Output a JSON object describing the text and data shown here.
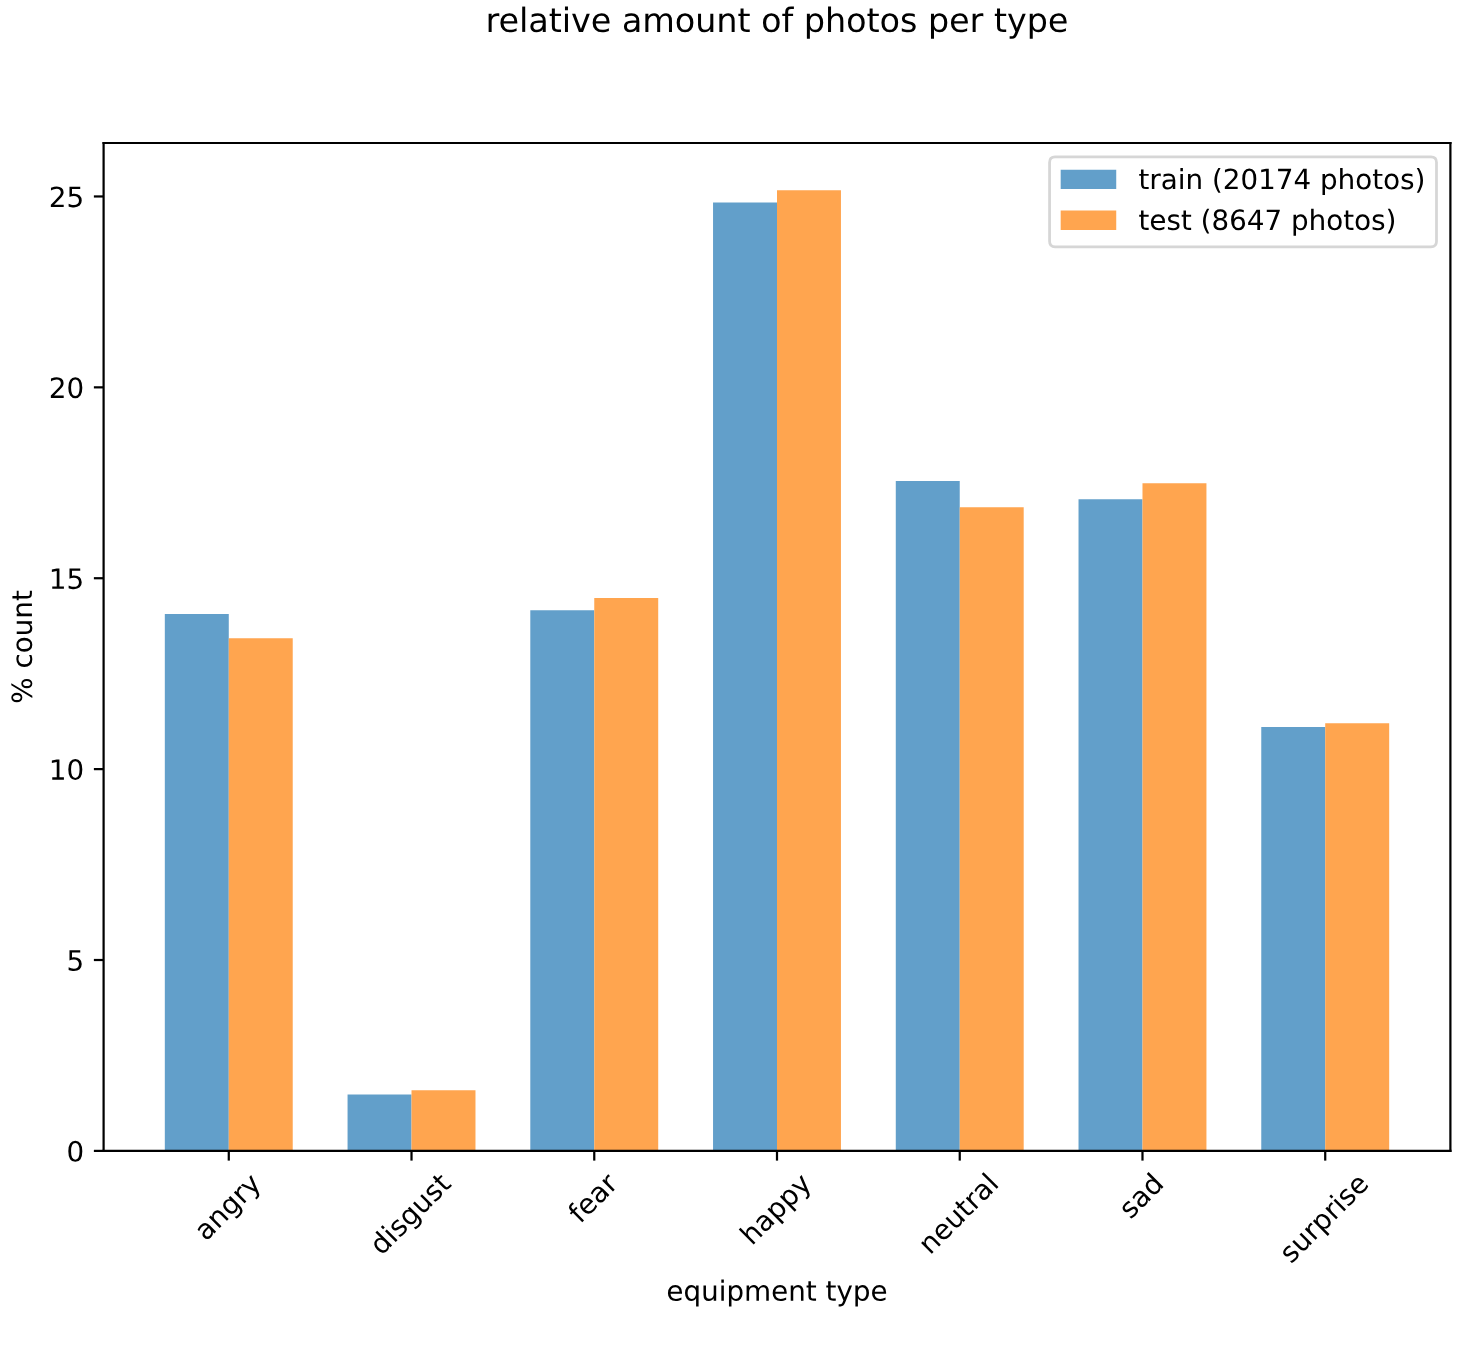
{
  "chart_data": {
    "type": "bar",
    "title": "relative amount of photos per type",
    "xlabel": "equipment type",
    "ylabel": "% count",
    "categories": [
      "angry",
      "disgust",
      "fear",
      "happy",
      "neutral",
      "sad",
      "surprise"
    ],
    "series": [
      {
        "name": "train (20174 photos)",
        "color": "#629fca",
        "values": [
          14.06,
          1.48,
          14.16,
          24.84,
          17.55,
          17.07,
          11.1
        ]
      },
      {
        "name": "test (8647 photos)",
        "color": "#ffa54f",
        "values": [
          13.43,
          1.59,
          14.48,
          25.16,
          16.86,
          17.49,
          11.2
        ]
      }
    ],
    "ylim": [
      0,
      26.4
    ],
    "yticks": [
      0,
      5,
      10,
      15,
      20,
      25
    ],
    "grid": false,
    "legend": "top right"
  }
}
